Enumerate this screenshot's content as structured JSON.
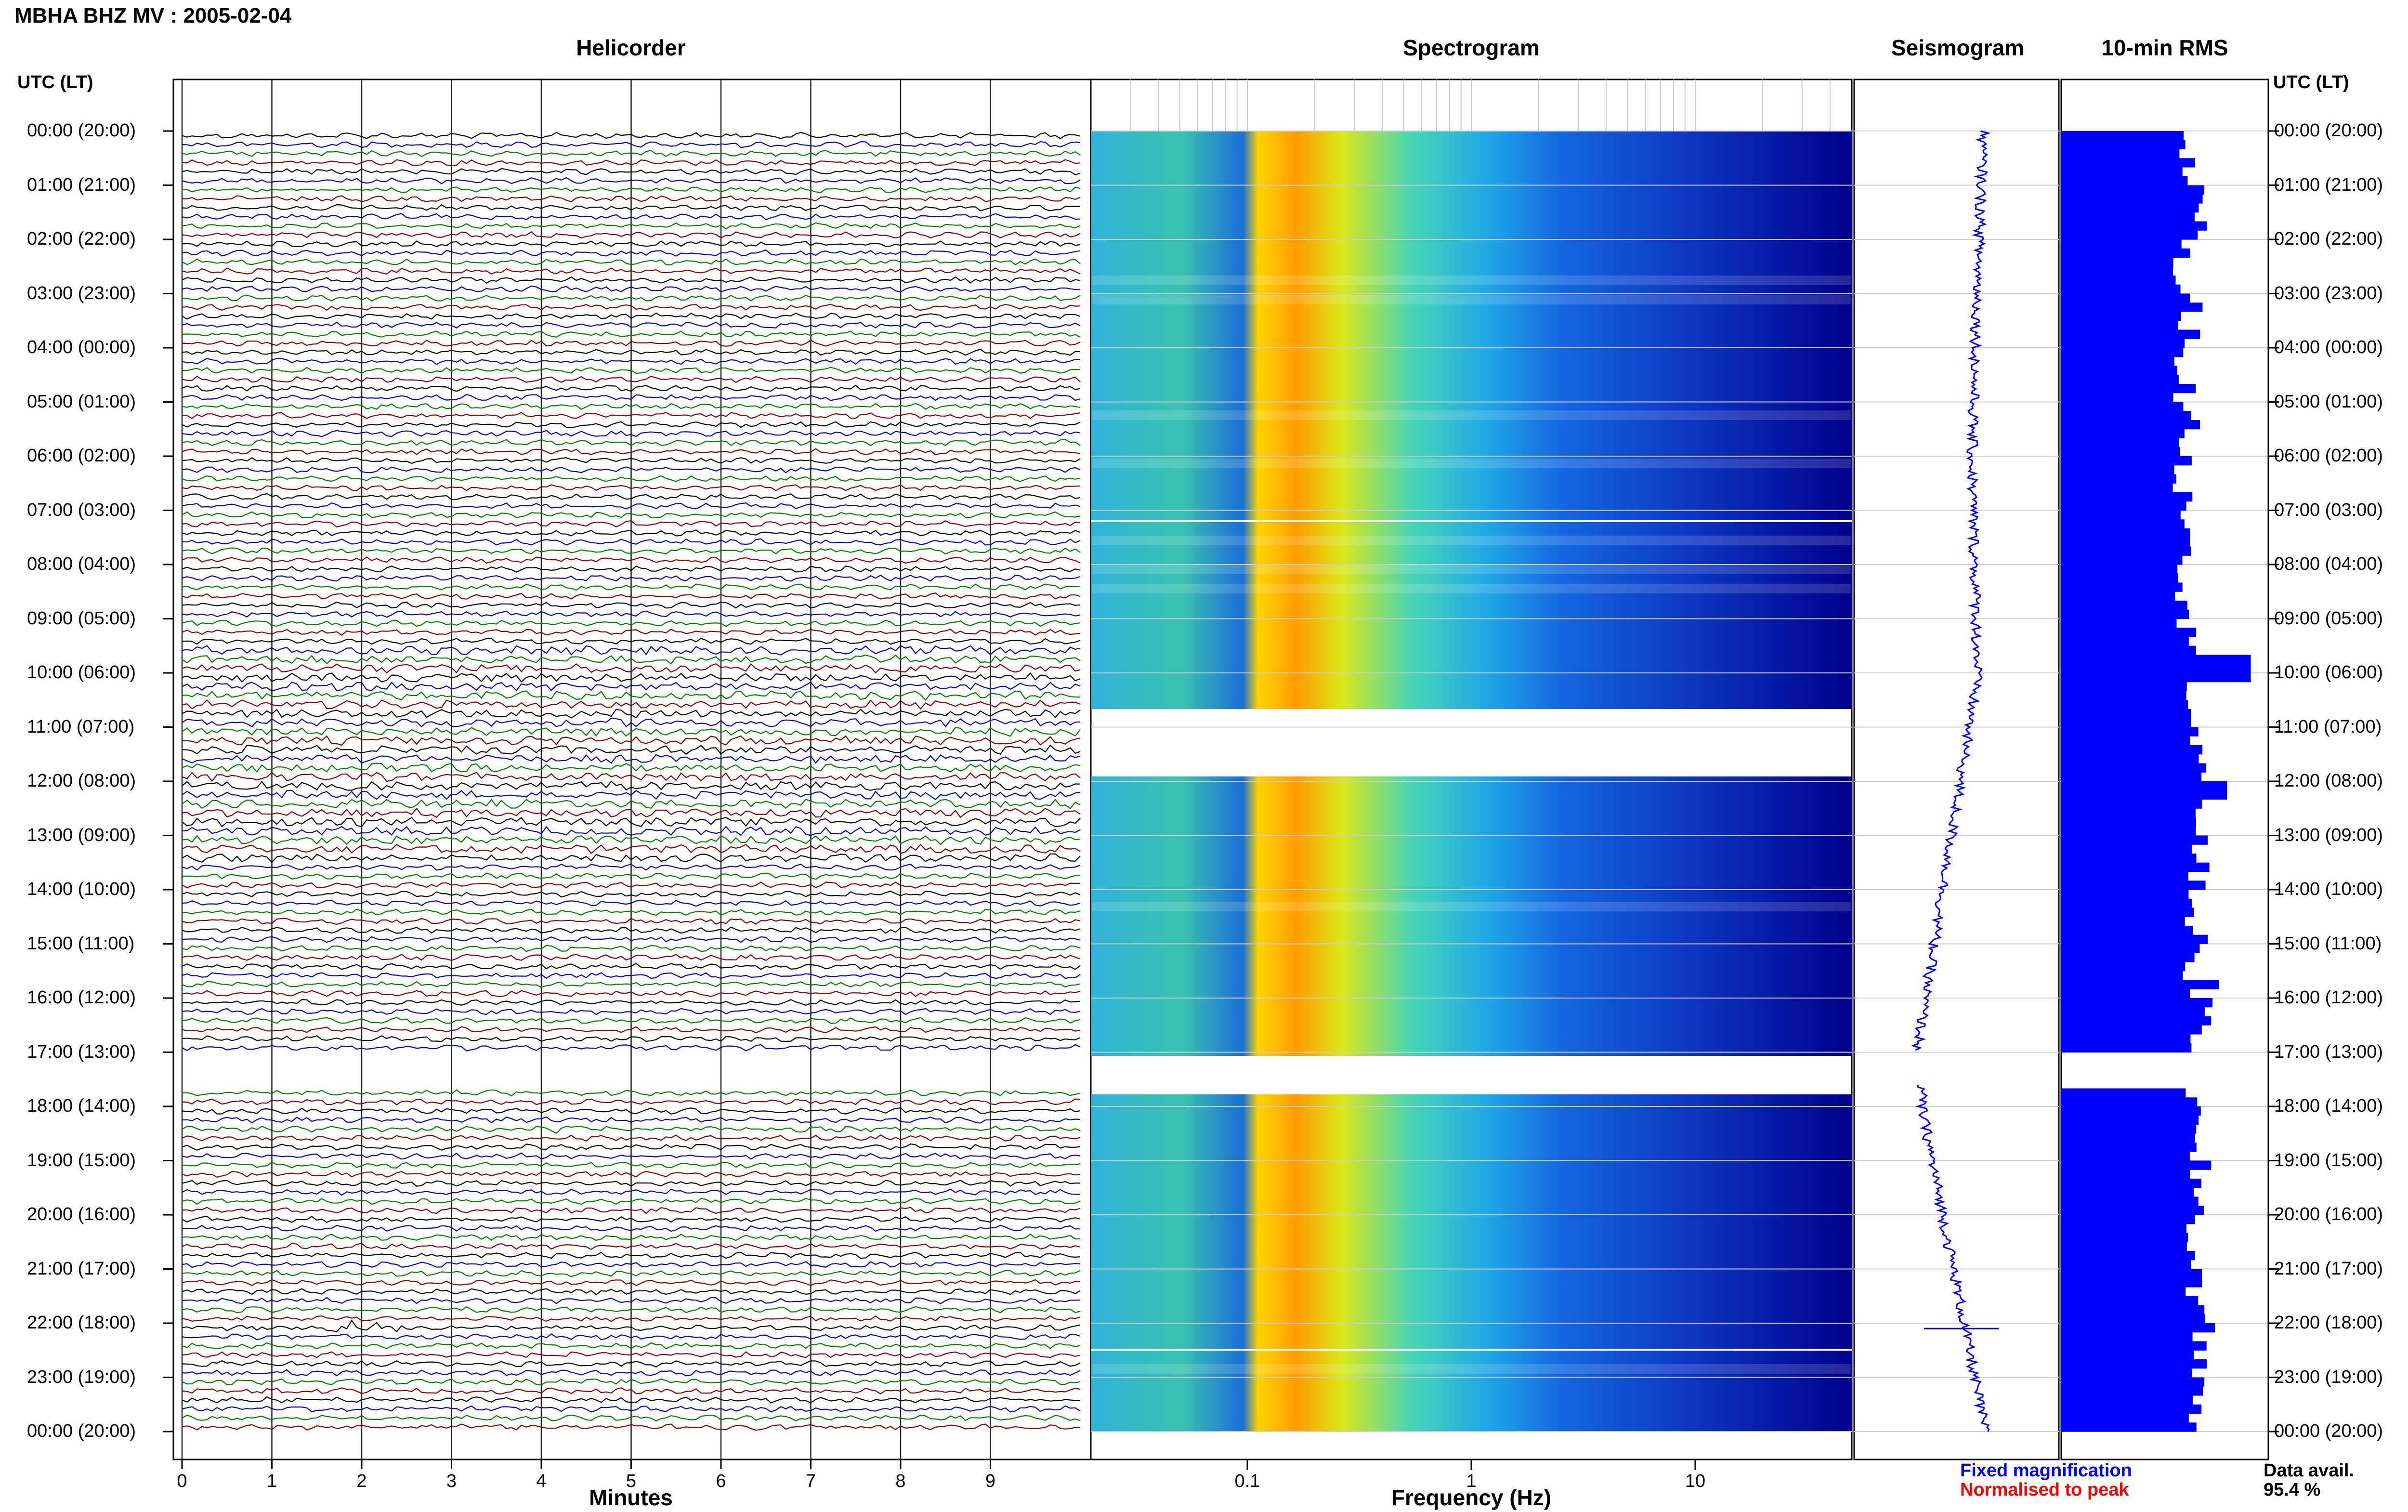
{
  "header": {
    "title": "MBHA BHZ MV : 2005-02-04"
  },
  "panels": {
    "helicorder": "Helicorder",
    "spectrogram": "Spectrogram",
    "seismogram": "Seismogram",
    "rms": "10-min RMS"
  },
  "axes": {
    "left_header": "UTC (LT)",
    "right_header": "UTC (LT)",
    "helicorder_xlabel": "Minutes",
    "spectrogram_xlabel": "Frequency (Hz)"
  },
  "legend": {
    "fixed": "Fixed magnification",
    "fixed_color": "#0000ff",
    "normalised": "Normalised to peak",
    "normalised_color": "#ff0000",
    "data_avail_label": "Data avail.",
    "data_avail_value": "95.4 %"
  },
  "colors": {
    "trace_cycle": [
      "#000000",
      "#0000c8",
      "#008000",
      "#8b0000"
    ],
    "rms_bar": "#0000ff",
    "seismogram": "#0000ff",
    "spectro_low": "#00008b",
    "spectro_high": "#ff0000"
  },
  "chart_data": [
    {
      "type": "line",
      "title": "Helicorder",
      "xlabel": "Minutes",
      "ylabel": "UTC (LT)",
      "x_ticks": [
        "0",
        "1",
        "2",
        "3",
        "4",
        "5",
        "6",
        "7",
        "8",
        "9"
      ],
      "xlim": [
        0,
        10
      ],
      "time_labels": [
        "00:00 (20:00)",
        "01:00 (21:00)",
        "02:00 (22:00)",
        "03:00 (23:00)",
        "04:00 (00:00)",
        "05:00 (01:00)",
        "06:00 (02:00)",
        "07:00 (03:00)",
        "08:00 (04:00)",
        "09:00 (05:00)",
        "10:00 (06:00)",
        "11:00 (07:00)",
        "12:00 (08:00)",
        "13:00 (09:00)",
        "14:00 (10:00)",
        "15:00 (11:00)",
        "16:00 (12:00)",
        "17:00 (13:00)",
        "18:00 (14:00)",
        "19:00 (15:00)",
        "20:00 (16:00)",
        "21:00 (17:00)",
        "22:00 (18:00)",
        "23:00 (19:00)",
        "00:00 (20:00)"
      ],
      "traces_per_hour": 6,
      "gap_hours": [
        17.0,
        17.6
      ],
      "events": [
        {
          "hour": 22.0,
          "minute": 1.9,
          "amplitude": "large"
        },
        {
          "hour": 18.3,
          "minute": 4.4,
          "amplitude": "medium"
        }
      ]
    },
    {
      "type": "heatmap",
      "title": "Spectrogram",
      "xlabel": "Frequency (Hz)",
      "x_scale": "log",
      "x_ticks": [
        "0.1",
        "1",
        "10"
      ],
      "xlim": [
        0.02,
        50
      ],
      "peak_frequency_hz": 0.15,
      "data_gaps_hours": [
        [
          10.5,
          11.9
        ],
        [
          17.0,
          17.65
        ]
      ]
    },
    {
      "type": "line",
      "title": "Seismogram",
      "data_gaps_hours": [
        [
          17.0,
          17.6
        ]
      ]
    },
    {
      "type": "bar",
      "title": "10-min RMS",
      "orientation": "horizontal",
      "hours": [
        0,
        24
      ],
      "gap_hours": [
        17.0,
        17.6
      ],
      "relative_values": [
        0.8,
        0.9,
        0.75,
        0.82,
        0.78,
        0.8,
        0.77,
        0.83,
        0.8,
        0.79,
        0.82,
        0.84,
        0.9,
        0.86,
        0.85,
        0.83,
        0.88,
        0.85,
        0.82,
        0.87,
        0.84,
        0.86,
        0.9,
        0.85
      ]
    }
  ]
}
